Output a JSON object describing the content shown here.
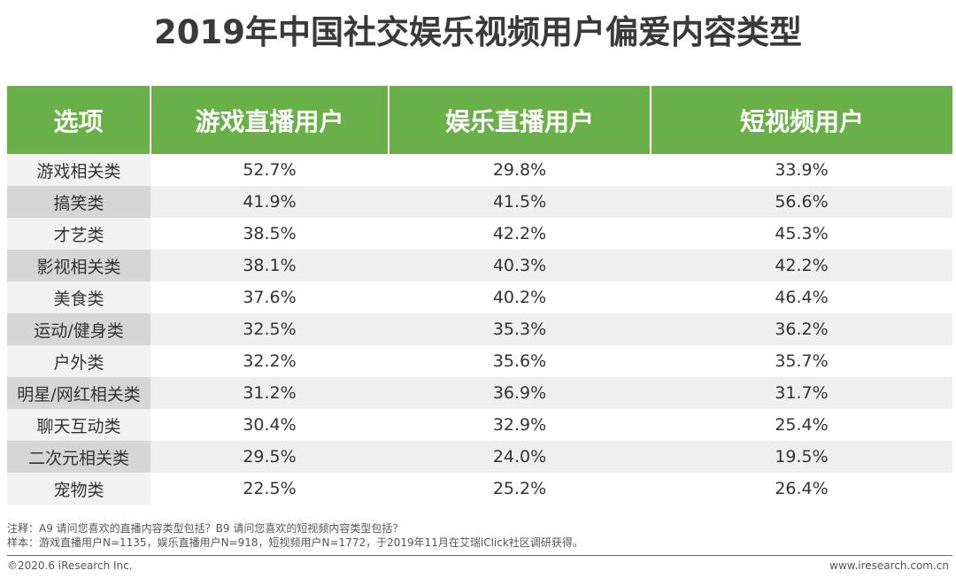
{
  "title": "2019年中国社交娱乐视频用户偏爱内容类型",
  "table": {
    "headers": [
      "选项",
      "游戏直播用户",
      "娱乐直播用户",
      "短视频用户"
    ],
    "rows": [
      [
        "游戏相关类",
        "52.7%",
        "29.8%",
        "33.9%"
      ],
      [
        "搞笑类",
        "41.9%",
        "41.5%",
        "56.6%"
      ],
      [
        "才艺类",
        "38.5%",
        "42.2%",
        "45.3%"
      ],
      [
        "影视相关类",
        "38.1%",
        "40.3%",
        "42.2%"
      ],
      [
        "美食类",
        "37.6%",
        "40.2%",
        "46.4%"
      ],
      [
        "运动/健身类",
        "32.5%",
        "35.3%",
        "36.2%"
      ],
      [
        "户外类",
        "32.2%",
        "35.6%",
        "35.7%"
      ],
      [
        "明星/网红相关类",
        "31.2%",
        "36.9%",
        "31.7%"
      ],
      [
        "聊天互动类",
        "30.4%",
        "32.9%",
        "25.4%"
      ],
      [
        "二次元相关类",
        "29.5%",
        "24.0%",
        "19.5%"
      ],
      [
        "宠物类",
        "22.5%",
        "25.2%",
        "26.4%"
      ]
    ]
  },
  "notes": {
    "note": "注释：A9 请问您喜欢的直播内容类型包括？B9 请问您喜欢的短视频内容类型包括？",
    "sample": "样本：游戏直播用户N=1135，娱乐直播用户N=918，短视频用户N=1772，于2019年11月在艾瑞iClick社区调研获得。"
  },
  "footer": {
    "copyright": "©2020.6 iResearch Inc.",
    "website": "www.iresearch.com.cn"
  },
  "colors": {
    "header_bg": "#6ab048",
    "header_text": "#ffffff",
    "stripe": "#efefef"
  }
}
